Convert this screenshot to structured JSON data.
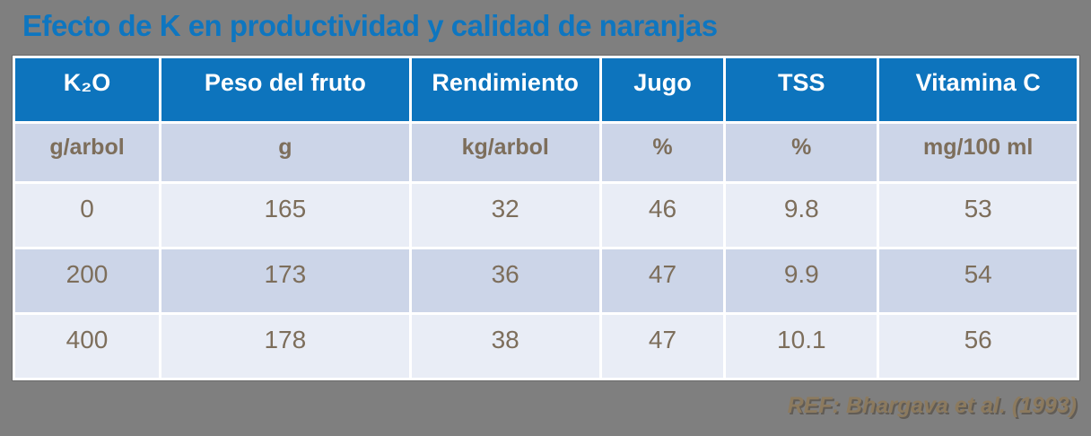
{
  "slide": {
    "title": "Efecto de K en productividad y calidad de naranjas",
    "reference": "REF: Bhargava et al. (1993)"
  },
  "colors": {
    "background": "#7f7f7f",
    "title-text": "#0e76c0",
    "header-bg": "#0d74bd",
    "header-text": "#ffffff",
    "row-dark-bg": "#ccd5e8",
    "row-light-bg": "#e9edf6",
    "cell-text": "#7d6e5b",
    "reference-text": "#8c7a5e"
  },
  "chart_data": {
    "type": "table",
    "title": "Efecto de K en productividad y calidad de naranjas",
    "columns": [
      {
        "header": "K₂O",
        "unit": "g/arbol"
      },
      {
        "header": "Peso del fruto",
        "unit": "g"
      },
      {
        "header": "Rendimiento",
        "unit": "kg/arbol"
      },
      {
        "header": "Jugo",
        "unit": "%"
      },
      {
        "header": "TSS",
        "unit": "%"
      },
      {
        "header": "Vitamina C",
        "unit": "mg/100 ml"
      }
    ],
    "rows": [
      [
        "0",
        "165",
        "32",
        "46",
        "9.8",
        "53"
      ],
      [
        "200",
        "173",
        "36",
        "47",
        "9.9",
        "54"
      ],
      [
        "400",
        "178",
        "38",
        "47",
        "10.1",
        "56"
      ]
    ],
    "source": "REF: Bhargava et al. (1993)"
  }
}
